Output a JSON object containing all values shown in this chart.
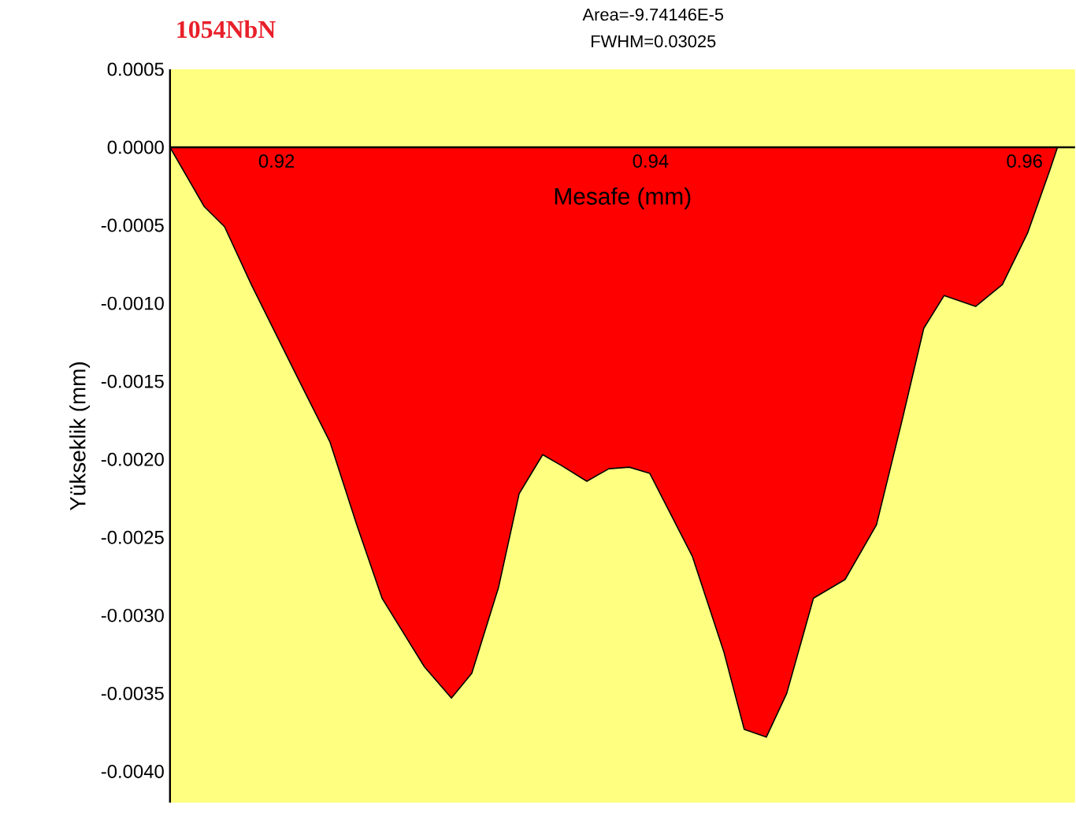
{
  "chart_data": {
    "type": "area",
    "title": "1054NbN",
    "annotations": [
      "Area=-9.74146E-5",
      "FWHM=0.03025"
    ],
    "xlabel": "Mesafe (mm)",
    "ylabel": "Yükseklik (mm)",
    "series": [
      {
        "color": "#ff0000",
        "x": [
          0.9143,
          0.91613,
          0.91722,
          0.91865,
          0.92118,
          0.92286,
          0.92429,
          0.92564,
          0.92791,
          0.92935,
          0.93044,
          0.93187,
          0.93297,
          0.93423,
          0.93524,
          0.93659,
          0.93777,
          0.93886,
          0.93996,
          0.94223,
          0.94391,
          0.94501,
          0.94619,
          0.94728,
          0.94871,
          0.9504,
          0.95208,
          0.95343,
          0.95461,
          0.9557,
          0.95738,
          0.95881,
          0.96016,
          0.96134,
          0.96176
        ],
        "values": [
          0,
          -0.00038,
          -0.00051,
          -0.00088,
          -0.00149,
          -0.00189,
          -0.00242,
          -0.00289,
          -0.00333,
          -0.00353,
          -0.00337,
          -0.00282,
          -0.00222,
          -0.00197,
          -0.00204,
          -0.00214,
          -0.00206,
          -0.00205,
          -0.00209,
          -0.00262,
          -0.00323,
          -0.00373,
          -0.00378,
          -0.0035,
          -0.00289,
          -0.00277,
          -0.00242,
          -0.00176,
          -0.00116,
          -0.00095,
          -0.00102,
          -0.00088,
          -0.00055,
          -0.00015,
          0
        ]
      }
    ],
    "xlim": [
      0.9143,
      0.9627
    ],
    "ylim": [
      -0.0042,
      0.0005
    ],
    "xticks": [
      0.92,
      0.94,
      0.96
    ],
    "yticks": [
      {
        "value": 0.0005,
        "label": "0.0005"
      },
      {
        "value": 0,
        "label": "0.0000"
      },
      {
        "value": -0.0005,
        "label": "-0.0005"
      },
      {
        "value": -0.001,
        "label": "-0.0010"
      },
      {
        "value": -0.0015,
        "label": "-0.0015"
      },
      {
        "value": -0.002,
        "label": "-0.0020"
      },
      {
        "value": -0.0025,
        "label": "-0.0025"
      },
      {
        "value": -0.003,
        "label": "-0.0030"
      },
      {
        "value": -0.0035,
        "label": "-0.0035"
      },
      {
        "value": -0.004,
        "label": "-0.0040"
      }
    ],
    "grid": false
  }
}
